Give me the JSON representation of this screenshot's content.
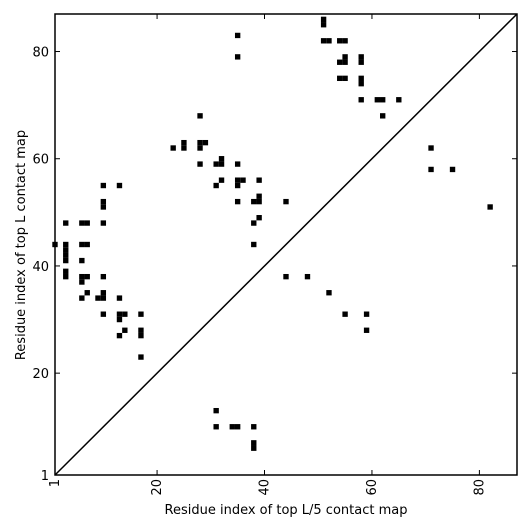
{
  "chart_data": {
    "type": "heatmap",
    "title": "",
    "xlabel": "Residue index of top L/5 contact map",
    "ylabel": "Residue index of top L contact map",
    "xlim": [
      1,
      87
    ],
    "ylim": [
      1,
      87
    ],
    "x_ticks": [
      1,
      20,
      40,
      60,
      80
    ],
    "y_ticks": [
      1,
      20,
      40,
      60,
      80
    ],
    "grid": false,
    "diagonal": true,
    "mark_color": "#000000",
    "line_color": "#000000",
    "upper_points": [
      [
        51,
        86
      ],
      [
        51,
        85
      ],
      [
        35,
        83
      ],
      [
        51,
        82
      ],
      [
        52,
        82
      ],
      [
        54,
        82
      ],
      [
        55,
        82
      ],
      [
        35,
        79
      ],
      [
        55,
        79
      ],
      [
        58,
        79
      ],
      [
        54,
        78
      ],
      [
        55,
        78
      ],
      [
        58,
        78
      ],
      [
        54,
        75
      ],
      [
        55,
        75
      ],
      [
        58,
        75
      ],
      [
        58,
        74
      ],
      [
        58,
        71
      ],
      [
        61,
        71
      ],
      [
        62,
        71
      ],
      [
        65,
        71
      ],
      [
        62,
        68
      ],
      [
        28,
        68
      ],
      [
        25,
        63
      ],
      [
        28,
        63
      ],
      [
        29,
        63
      ],
      [
        23,
        62
      ],
      [
        25,
        62
      ],
      [
        28,
        62
      ],
      [
        71,
        62
      ],
      [
        32,
        60
      ],
      [
        31,
        59
      ],
      [
        32,
        59
      ],
      [
        35,
        59
      ],
      [
        28,
        59
      ],
      [
        71,
        58
      ],
      [
        75,
        58
      ],
      [
        32,
        56
      ],
      [
        35,
        56
      ],
      [
        36,
        56
      ],
      [
        39,
        56
      ],
      [
        10,
        55
      ],
      [
        13,
        55
      ],
      [
        31,
        55
      ],
      [
        35,
        55
      ],
      [
        10,
        52
      ],
      [
        35,
        52
      ],
      [
        38,
        52
      ],
      [
        39,
        52
      ],
      [
        39,
        53
      ],
      [
        44,
        52
      ],
      [
        10,
        51
      ],
      [
        82,
        51
      ],
      [
        39,
        49
      ],
      [
        38,
        48
      ],
      [
        3,
        48
      ],
      [
        6,
        48
      ],
      [
        7,
        48
      ],
      [
        10,
        48
      ],
      [
        38,
        44
      ],
      [
        1,
        44
      ],
      [
        3,
        44
      ],
      [
        6,
        44
      ],
      [
        7,
        44
      ],
      [
        3,
        43
      ],
      [
        3,
        42
      ],
      [
        3,
        41
      ],
      [
        6,
        41
      ],
      [
        3,
        39
      ],
      [
        3,
        38
      ],
      [
        6,
        38
      ],
      [
        7,
        38
      ],
      [
        10,
        38
      ],
      [
        44,
        38
      ],
      [
        48,
        38
      ],
      [
        6,
        37
      ],
      [
        7,
        35
      ],
      [
        10,
        35
      ],
      [
        52,
        35
      ],
      [
        6,
        34
      ],
      [
        9,
        34
      ],
      [
        10,
        34
      ],
      [
        13,
        34
      ],
      [
        10,
        31
      ],
      [
        13,
        31
      ],
      [
        14,
        31
      ],
      [
        17,
        31
      ],
      [
        55,
        31
      ],
      [
        59,
        31
      ],
      [
        13,
        30
      ],
      [
        14,
        28
      ],
      [
        17,
        28
      ],
      [
        59,
        28
      ],
      [
        13,
        27
      ],
      [
        17,
        27
      ],
      [
        17,
        23
      ]
    ],
    "lower_points": [
      [
        31,
        13
      ],
      [
        31,
        10
      ],
      [
        34,
        10
      ],
      [
        35,
        10
      ],
      [
        38,
        10
      ],
      [
        38,
        7
      ],
      [
        38,
        6
      ]
    ]
  }
}
